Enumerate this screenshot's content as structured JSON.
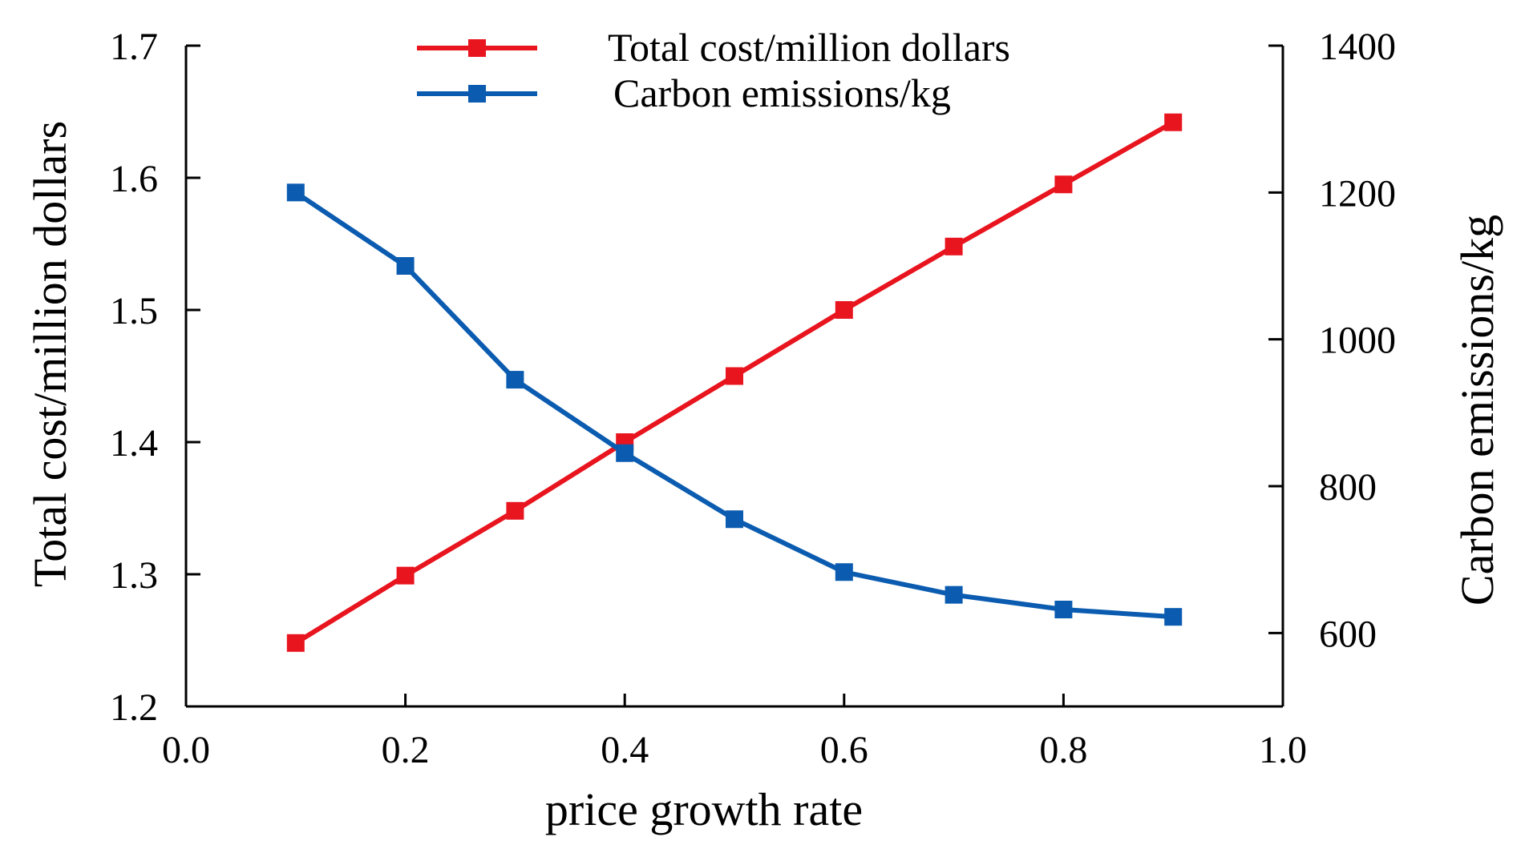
{
  "chart_data": {
    "type": "line",
    "xlabel": "price growth rate",
    "ylabel": "Total cost/million dollars",
    "y2label": "Carbon emissions/kg",
    "xlim": [
      0.0,
      1.0
    ],
    "ylim": [
      1.2,
      1.7
    ],
    "y2lim": [
      500,
      1400
    ],
    "xticks": [
      "0.0",
      "0.2",
      "0.4",
      "0.6",
      "0.8",
      "1.0"
    ],
    "yticks": [
      "1.2",
      "1.3",
      "1.4",
      "1.5",
      "1.6",
      "1.7"
    ],
    "y2ticks": [
      "600",
      "800",
      "1000",
      "1200",
      "1400"
    ],
    "x": [
      0.1,
      0.2,
      0.3,
      0.4,
      0.5,
      0.6,
      0.7,
      0.8,
      0.9
    ],
    "grid": false,
    "legend_position": "top-center",
    "series": [
      {
        "name": "Total cost/million dollars",
        "axis": "left",
        "color": "#e8141e",
        "marker": "square",
        "values": [
          1.248,
          1.299,
          1.348,
          1.4,
          1.45,
          1.5,
          1.548,
          1.595,
          1.642
        ]
      },
      {
        "name": "Carbon emissions/kg",
        "axis": "right",
        "color": "#0b5cb0",
        "marker": "square",
        "values": [
          1200,
          1100,
          945,
          845,
          755,
          683,
          652,
          632,
          622
        ]
      }
    ]
  }
}
